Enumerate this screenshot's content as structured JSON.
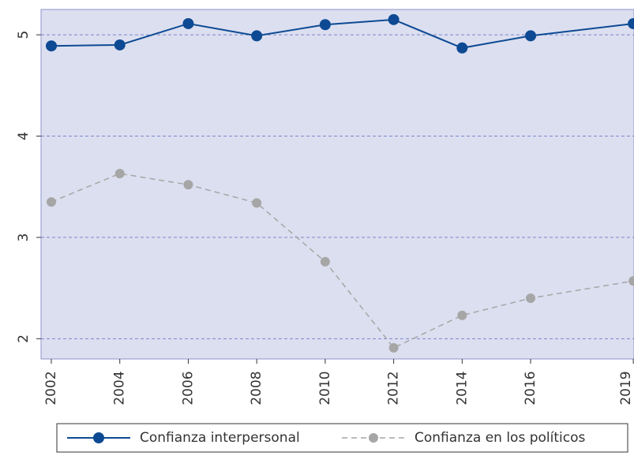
{
  "chart_data": {
    "type": "line",
    "x": [
      2002,
      2004,
      2006,
      2008,
      2010,
      2012,
      2014,
      2016,
      2019
    ],
    "series": [
      {
        "name": "Confianza interpersonal",
        "color": "#0d4a93",
        "dashed": false,
        "values": [
          4.89,
          4.9,
          5.11,
          4.99,
          5.1,
          5.15,
          4.87,
          4.99,
          5.11
        ]
      },
      {
        "name": "Confianza en los políticos",
        "color": "#a6a6a6",
        "dashed": true,
        "values": [
          3.35,
          3.63,
          3.52,
          3.34,
          2.76,
          1.91,
          2.23,
          2.4,
          2.57
        ]
      }
    ],
    "xlim": [
      2001.7,
      2019.02
    ],
    "xticks": [
      2002,
      2004,
      2006,
      2008,
      2010,
      2012,
      2014,
      2016,
      2019
    ],
    "ylim": [
      1.8,
      5.25
    ],
    "yticks": [
      2,
      3,
      4,
      5
    ],
    "grid": true,
    "legend": "bottom"
  }
}
